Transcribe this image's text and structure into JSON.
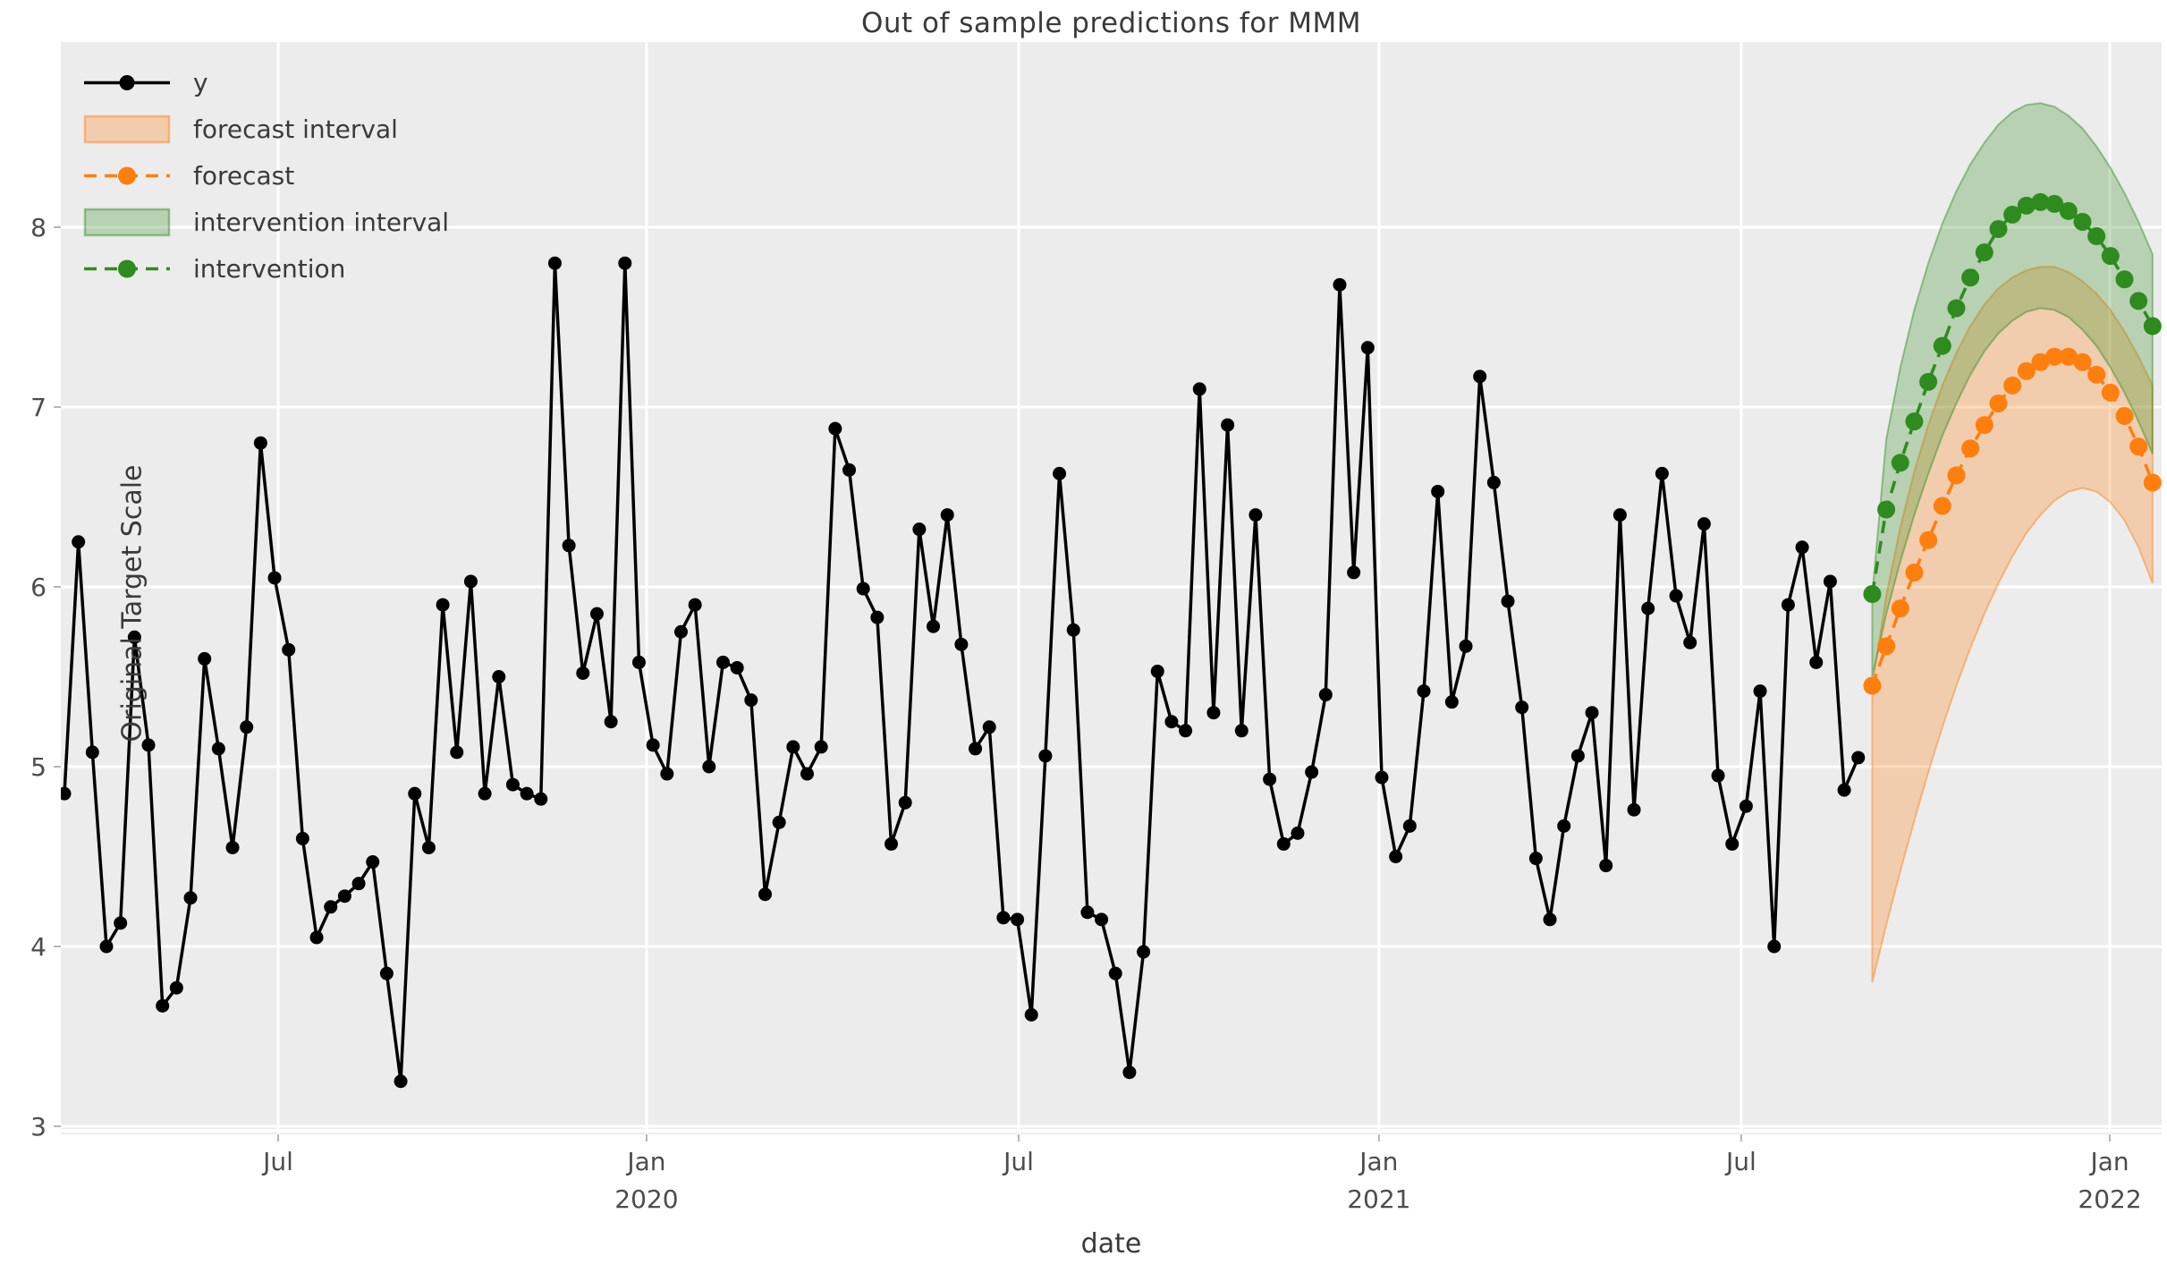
{
  "chart_data": {
    "type": "line",
    "title": "Out of sample predictions for MMM",
    "xlabel": "date",
    "ylabel": "Original Target Scale",
    "ylim": [
      3,
      8
    ],
    "grid": true,
    "legend_position": "upper left",
    "background": "#ececec",
    "grid_color": "#ffffff",
    "colors": {
      "y": "#000000",
      "forecast": "#ff7f0e",
      "intervention": "#2e8b1e"
    },
    "y_ticks": [
      8,
      7,
      6,
      5,
      4,
      3
    ],
    "x_ticks": [
      {
        "label": "Jul",
        "year": "",
        "week": 15.25
      },
      {
        "label": "Jan",
        "year": "2020",
        "week": 41.54
      },
      {
        "label": "Jul",
        "year": "",
        "week": 68.09
      },
      {
        "label": "Jan",
        "year": "2021",
        "week": 93.8
      },
      {
        "label": "Jul",
        "year": "",
        "week": 119.65
      },
      {
        "label": "Jan",
        "year": "2022",
        "week": 145.95
      }
    ],
    "series": {
      "y": {
        "name": "y",
        "start_week": 0,
        "values": [
          4.85,
          6.25,
          5.08,
          4.0,
          4.13,
          5.72,
          5.12,
          3.67,
          3.77,
          4.27,
          5.6,
          5.1,
          4.55,
          5.22,
          6.8,
          6.05,
          5.65,
          4.6,
          4.05,
          4.22,
          4.28,
          4.35,
          4.47,
          3.85,
          3.25,
          4.85,
          4.55,
          5.9,
          5.08,
          6.03,
          4.85,
          5.5,
          4.9,
          4.85,
          4.82,
          7.8,
          6.23,
          5.52,
          5.85,
          5.25,
          7.8,
          5.58,
          5.12,
          4.96,
          5.75,
          5.9,
          5.0,
          5.58,
          5.55,
          5.37,
          4.29,
          4.69,
          5.11,
          4.96,
          5.11,
          6.88,
          6.65,
          5.99,
          5.83,
          4.57,
          4.8,
          6.32,
          5.78,
          6.4,
          5.68,
          5.1,
          5.22,
          4.16,
          4.15,
          3.62,
          5.06,
          6.63,
          5.76,
          4.19,
          4.15,
          3.85,
          3.3,
          3.97,
          5.53,
          5.25,
          5.2,
          7.1,
          5.3,
          6.9,
          5.2,
          6.4,
          4.93,
          4.57,
          4.63,
          4.97,
          5.4,
          7.68,
          6.08,
          7.33,
          4.94,
          4.5,
          4.67,
          5.42,
          6.53,
          5.36,
          5.67,
          7.17,
          6.58,
          5.92,
          5.33,
          4.49,
          4.15,
          4.67,
          5.06,
          5.3,
          4.45,
          6.4,
          4.76,
          5.88,
          6.63,
          5.95,
          5.69,
          6.35,
          4.95,
          4.57,
          4.78,
          5.42,
          4.0,
          5.9,
          6.22,
          5.58,
          6.03,
          4.87,
          5.05
        ]
      },
      "forecast": {
        "name": "forecast",
        "start_week": 129,
        "values": [
          5.45,
          5.67,
          5.88,
          6.08,
          6.26,
          6.45,
          6.62,
          6.77,
          6.9,
          7.02,
          7.12,
          7.2,
          7.25,
          7.28,
          7.28,
          7.25,
          7.18,
          7.08,
          6.95,
          6.78,
          6.58
        ],
        "lower": [
          3.8,
          4.12,
          4.42,
          4.7,
          4.97,
          5.22,
          5.45,
          5.66,
          5.85,
          6.02,
          6.17,
          6.3,
          6.4,
          6.48,
          6.53,
          6.55,
          6.53,
          6.47,
          6.37,
          6.22,
          6.02
        ],
        "upper": [
          5.45,
          5.95,
          6.33,
          6.64,
          6.9,
          7.12,
          7.3,
          7.45,
          7.57,
          7.66,
          7.72,
          7.76,
          7.78,
          7.78,
          7.75,
          7.7,
          7.63,
          7.54,
          7.42,
          7.28,
          7.12
        ]
      },
      "intervention": {
        "name": "intervention",
        "start_week": 129,
        "values": [
          5.96,
          6.43,
          6.69,
          6.92,
          7.14,
          7.34,
          7.55,
          7.72,
          7.86,
          7.99,
          8.07,
          8.12,
          8.14,
          8.13,
          8.09,
          8.03,
          7.95,
          7.84,
          7.71,
          7.59,
          7.45
        ],
        "lower": [
          5.5,
          5.85,
          6.14,
          6.4,
          6.63,
          6.84,
          7.02,
          7.18,
          7.31,
          7.41,
          7.48,
          7.53,
          7.55,
          7.54,
          7.5,
          7.43,
          7.34,
          7.22,
          7.08,
          6.92,
          6.74
        ],
        "upper": [
          5.96,
          6.82,
          7.22,
          7.54,
          7.8,
          8.02,
          8.2,
          8.35,
          8.47,
          8.57,
          8.64,
          8.68,
          8.69,
          8.67,
          8.62,
          8.55,
          8.45,
          8.33,
          8.19,
          8.03,
          7.85
        ]
      }
    }
  },
  "legend": [
    {
      "label": "y"
    },
    {
      "label": "forecast interval"
    },
    {
      "label": "forecast"
    },
    {
      "label": "intervention interval"
    },
    {
      "label": "intervention"
    }
  ]
}
